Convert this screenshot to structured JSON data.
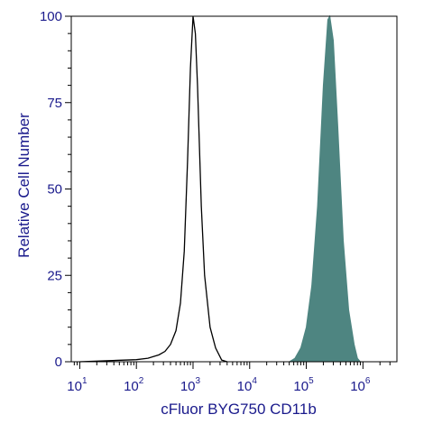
{
  "chart_data": {
    "type": "area",
    "title": "",
    "xlabel": "cFluor BYG750 CD11b",
    "ylabel": "Relative Cell Number",
    "x_scale": "log",
    "xlim_exponent": [
      0.85,
      6.6
    ],
    "ylim": [
      0,
      100
    ],
    "x_ticks": [
      {
        "base": "10",
        "exp": "1",
        "value": 10
      },
      {
        "base": "10",
        "exp": "2",
        "value": 100
      },
      {
        "base": "10",
        "exp": "3",
        "value": 1000
      },
      {
        "base": "10",
        "exp": "4",
        "value": 10000
      },
      {
        "base": "10",
        "exp": "5",
        "value": 100000
      },
      {
        "base": "10",
        "exp": "6",
        "value": 1000000
      }
    ],
    "y_ticks": [
      "0",
      "25",
      "50",
      "75",
      "100"
    ],
    "grid": false,
    "series": [
      {
        "style": "outline",
        "color": "#000000",
        "points": [
          [
            10,
            0
          ],
          [
            100,
            0.6
          ],
          [
            160,
            1.0
          ],
          [
            250,
            2.0
          ],
          [
            320,
            3.0
          ],
          [
            400,
            5.0
          ],
          [
            500,
            9.0
          ],
          [
            600,
            17.0
          ],
          [
            700,
            32.0
          ],
          [
            800,
            58.0
          ],
          [
            900,
            85.0
          ],
          [
            1000,
            100.0
          ],
          [
            1100,
            95.0
          ],
          [
            1200,
            80.0
          ],
          [
            1400,
            45.0
          ],
          [
            1600,
            25.0
          ],
          [
            2000,
            10.0
          ],
          [
            2500,
            4.0
          ],
          [
            3200,
            0.5
          ],
          [
            4000,
            0
          ]
        ]
      },
      {
        "style": "filled",
        "color": "#4e8581",
        "points": [
          [
            50000,
            0
          ],
          [
            63000,
            1.0
          ],
          [
            80000,
            4.0
          ],
          [
            100000,
            10.0
          ],
          [
            125000,
            22.0
          ],
          [
            158000,
            45.0
          ],
          [
            200000,
            80.0
          ],
          [
            240000,
            99.0
          ],
          [
            260000,
            100.0
          ],
          [
            300000,
            93.0
          ],
          [
            360000,
            68.0
          ],
          [
            450000,
            35.0
          ],
          [
            560000,
            15.0
          ],
          [
            700000,
            5.0
          ],
          [
            800000,
            1.0
          ],
          [
            900000,
            0
          ]
        ]
      }
    ]
  }
}
